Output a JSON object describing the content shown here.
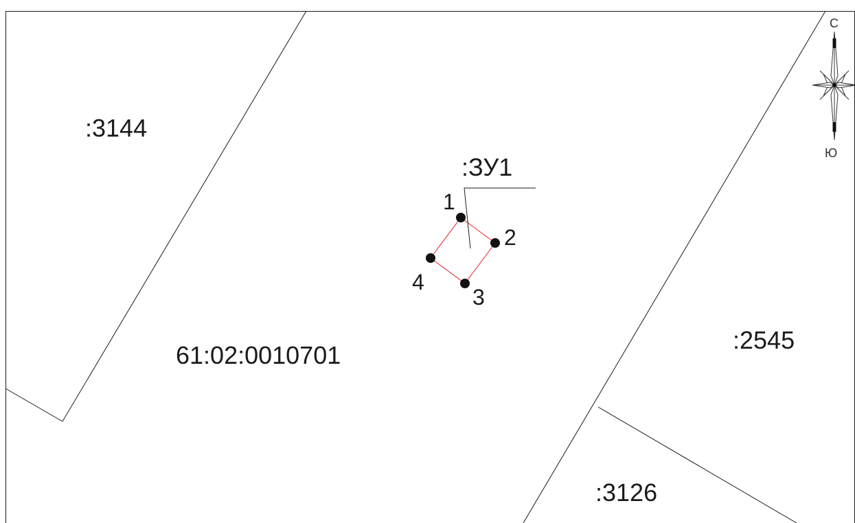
{
  "map": {
    "quarter_label": "61:02:0010701",
    "parcels": [
      {
        "id": "p3144",
        "label": ":3144"
      },
      {
        "id": "p2545",
        "label": ":2545"
      },
      {
        "id": "p3126",
        "label": ":3126"
      }
    ],
    "target_parcel": {
      "label": ":ЗУ1",
      "points": [
        "1",
        "2",
        "3",
        "4"
      ]
    },
    "compass": {
      "north": "С",
      "south": "Ю"
    },
    "colors": {
      "line": "#1a1a1a",
      "target_outline": "#e8242a",
      "point_fill": "#111111",
      "background": "#ffffff"
    }
  }
}
